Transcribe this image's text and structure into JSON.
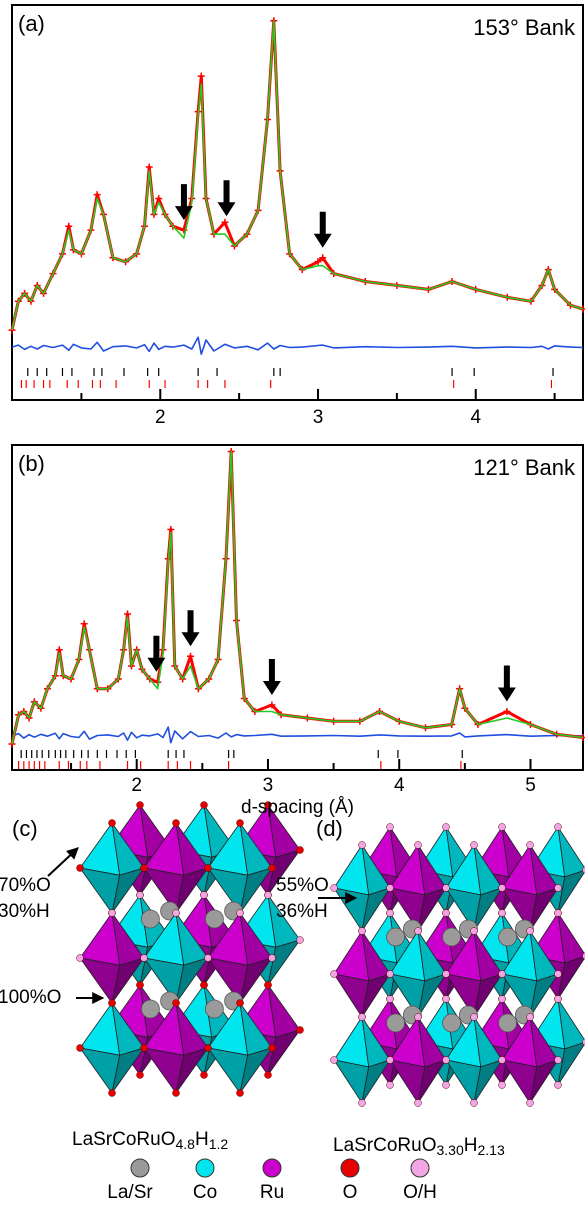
{
  "chart_data": [
    {
      "type": "line",
      "panel_label": "(a)",
      "title": "153° Bank",
      "x": [
        1.06,
        1.1,
        1.14,
        1.18,
        1.22,
        1.26,
        1.32,
        1.38,
        1.42,
        1.45,
        1.5,
        1.56,
        1.6,
        1.64,
        1.7,
        1.78,
        1.85,
        1.9,
        1.93,
        1.96,
        1.99,
        2.03,
        2.08,
        2.15,
        2.2,
        2.24,
        2.26,
        2.29,
        2.34,
        2.41,
        2.47,
        2.55,
        2.62,
        2.68,
        2.72,
        2.76,
        2.82,
        2.9,
        3.0,
        3.03,
        3.1,
        3.3,
        3.5,
        3.7,
        3.85,
        4.0,
        4.2,
        4.35,
        4.42,
        4.46,
        4.5,
        4.6,
        4.68
      ],
      "series": [
        {
          "color": "#ff0000",
          "marker": "+",
          "values": [
            17.7,
            25,
            27,
            25,
            29,
            27,
            32,
            37,
            44,
            38,
            37,
            43,
            52,
            47,
            36,
            35,
            37,
            44,
            59,
            47,
            51,
            47,
            44,
            43,
            51,
            73,
            82,
            51,
            42,
            45,
            39,
            42,
            48,
            71,
            96,
            58,
            37,
            33,
            35,
            36,
            32,
            30,
            29,
            28,
            30,
            28,
            26,
            25,
            29,
            33,
            28,
            24,
            23
          ]
        },
        {
          "color": "#22cc22",
          "values": [
            17.7,
            25,
            27,
            25,
            29,
            27,
            32,
            37,
            43,
            38,
            37,
            43,
            51,
            47,
            36,
            35,
            37,
            44,
            58,
            47,
            50,
            47,
            44,
            41,
            50,
            72,
            80,
            51,
            42,
            42,
            39,
            42,
            48,
            71,
            96,
            58,
            37,
            33,
            34,
            34,
            32,
            30,
            29,
            28,
            30,
            28,
            26,
            25,
            29,
            33,
            28,
            24,
            23
          ]
        },
        {
          "color": "#1f4fe0",
          "values": [
            13.4,
            13.9,
            12.8,
            13.6,
            12.9,
            13.8,
            13.3,
            13.9,
            12.6,
            14.1,
            13.2,
            12.9,
            14.6,
            12.4,
            13.5,
            13.7,
            13.2,
            14.0,
            12.3,
            14.4,
            12.8,
            13.6,
            13.4,
            13.9,
            12.9,
            15.9,
            11.6,
            15.2,
            12.4,
            14.1,
            13.2,
            13.6,
            12.7,
            14.4,
            12.9,
            13.8,
            13.3,
            13.4,
            13.8,
            13.9,
            13.2,
            13.5,
            13.3,
            13.4,
            13.6,
            13.2,
            13.4,
            13.3,
            13.6,
            12.9,
            13.7,
            13.4,
            13.3
          ]
        }
      ],
      "reflections": [
        {
          "color": "#000000",
          "values": [
            1.16,
            1.22,
            1.28,
            1.38,
            1.44,
            1.58,
            1.63,
            1.77,
            1.92,
            1.99,
            2.24,
            2.36,
            2.72,
            2.76,
            3.85,
            3.99,
            4.49
          ]
        },
        {
          "color": "#ff0000",
          "values": [
            1.12,
            1.15,
            1.2,
            1.26,
            1.3,
            1.41,
            1.48,
            1.57,
            1.62,
            1.72,
            1.93,
            2.03,
            2.24,
            2.3,
            2.41,
            2.7,
            3.86,
            4.48
          ]
        }
      ],
      "arrows": [
        2.15,
        2.42,
        3.03
      ],
      "xlim": [
        1.06,
        4.68
      ],
      "xticks": [
        2,
        3,
        4
      ],
      "xminor": [
        1.5,
        2.5,
        3.5,
        4.5
      ],
      "ylim": [
        0,
        100
      ]
    },
    {
      "type": "line",
      "panel_label": "(b)",
      "title": "121° Bank",
      "xlabel": "d-spacing (Å)",
      "x": [
        1.05,
        1.1,
        1.14,
        1.18,
        1.22,
        1.27,
        1.32,
        1.38,
        1.41,
        1.44,
        1.5,
        1.56,
        1.6,
        1.64,
        1.7,
        1.78,
        1.86,
        1.9,
        1.93,
        1.96,
        2.0,
        2.04,
        2.1,
        2.16,
        2.2,
        2.24,
        2.26,
        2.29,
        2.35,
        2.41,
        2.47,
        2.55,
        2.62,
        2.68,
        2.72,
        2.76,
        2.82,
        2.9,
        3.03,
        3.1,
        3.3,
        3.5,
        3.7,
        3.85,
        4.0,
        4.2,
        4.4,
        4.46,
        4.5,
        4.6,
        4.82,
        5.0,
        5.2,
        5.4
      ],
      "series": [
        {
          "color": "#ff0000",
          "marker": "+",
          "values": [
            8,
            17,
            18,
            16,
            21,
            19,
            25,
            29,
            37,
            29,
            28,
            34,
            45,
            37,
            25,
            25,
            28,
            37,
            48,
            32,
            37,
            31,
            28,
            27,
            37,
            65,
            74,
            32,
            28,
            35,
            25,
            28,
            34,
            65,
            98,
            46,
            22,
            18,
            20,
            17,
            16,
            15,
            15,
            18,
            15,
            13,
            14,
            25,
            19,
            14,
            18,
            14,
            11,
            10
          ]
        },
        {
          "color": "#22cc22",
          "values": [
            8,
            17,
            18,
            16,
            21,
            19,
            25,
            29,
            36,
            29,
            28,
            34,
            44,
            37,
            25,
            25,
            28,
            37,
            47,
            32,
            37,
            31,
            28,
            25,
            36,
            64,
            73,
            32,
            28,
            32,
            25,
            28,
            34,
            65,
            98,
            46,
            22,
            18,
            18,
            17,
            16,
            15,
            15,
            18,
            15,
            13,
            14,
            25,
            19,
            14,
            16,
            14,
            11,
            10
          ]
        },
        {
          "color": "#1f4fe0",
          "values": [
            10.5,
            11.2,
            9.8,
            10.9,
            10.1,
            11.0,
            10.4,
            11.3,
            9.6,
            11.2,
            10.3,
            10.0,
            11.9,
            9.5,
            10.6,
            10.8,
            10.3,
            11.4,
            9.2,
            11.6,
            9.9,
            10.7,
            10.5,
            11.1,
            10.0,
            13.2,
            8.4,
            12.0,
            9.6,
            11.8,
            10.3,
            10.6,
            9.8,
            11.4,
            10.2,
            10.9,
            10.5,
            10.6,
            11.0,
            10.4,
            10.5,
            10.6,
            10.4,
            10.8,
            10.5,
            10.4,
            10.5,
            11.4,
            10.2,
            10.5,
            10.9,
            10.4,
            10.6,
            10.5
          ]
        }
      ],
      "reflections": [
        {
          "color": "#000000",
          "values": [
            1.12,
            1.16,
            1.2,
            1.24,
            1.28,
            1.33,
            1.38,
            1.42,
            1.46,
            1.52,
            1.58,
            1.63,
            1.7,
            1.77,
            1.85,
            1.92,
            1.99,
            2.24,
            2.3,
            2.36,
            2.7,
            2.74,
            3.84,
            3.99,
            4.48
          ]
        },
        {
          "color": "#ff0000",
          "values": [
            1.1,
            1.14,
            1.18,
            1.22,
            1.26,
            1.3,
            1.41,
            1.48,
            1.57,
            1.62,
            1.72,
            1.93,
            2.03,
            2.24,
            2.31,
            2.41,
            2.7,
            3.86,
            4.47
          ]
        }
      ],
      "arrows": [
        2.15,
        2.41,
        3.03,
        4.82
      ],
      "xlim": [
        1.05,
        5.4
      ],
      "xticks": [
        2,
        3,
        4,
        5
      ],
      "xminor": [
        1.5,
        2.5,
        3.5,
        4.5
      ],
      "ylim": [
        0,
        100
      ]
    }
  ],
  "structures": [
    {
      "panel_label": "(c)",
      "sites": [
        {
          "lines": [
            "70%O",
            "30%H"
          ]
        },
        {
          "lines": [
            "100%O"
          ]
        }
      ],
      "formula": [
        "LaSrCoRuO",
        "4.8",
        "H",
        "1.2"
      ]
    },
    {
      "panel_label": "(d)",
      "sites": [
        {
          "lines": [
            "55%O",
            "36%H"
          ]
        }
      ],
      "formula": [
        "LaSrCoRuO",
        "3.30",
        "H",
        "2.13"
      ]
    }
  ],
  "legend": [
    {
      "name": "La/Sr",
      "color": "#9a9a9a"
    },
    {
      "name": "Co",
      "color": "#00e5ee"
    },
    {
      "name": "Ru",
      "color": "#cc00cc"
    },
    {
      "name": "O",
      "color": "#e60000"
    },
    {
      "name": "O/H",
      "color": "#f2a6e6"
    }
  ]
}
